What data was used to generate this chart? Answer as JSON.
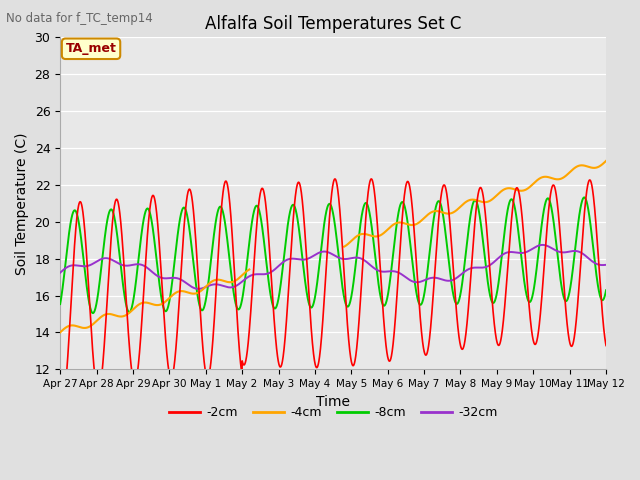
{
  "title": "Alfalfa Soil Temperatures Set C",
  "subtitle": "No data for f_TC_temp14",
  "xlabel": "Time",
  "ylabel": "Soil Temperature (C)",
  "ylim": [
    12,
    30
  ],
  "xlim": [
    0,
    15
  ],
  "xtick_labels": [
    "Apr 27",
    "Apr 28",
    "Apr 29",
    "Apr 30",
    "May 1",
    "May 2",
    "May 3",
    "May 4",
    "May 5",
    "May 6",
    "May 7",
    "May 8",
    "May 9",
    "May 10",
    "May 11",
    "May 12"
  ],
  "xtick_positions": [
    0,
    1,
    2,
    3,
    4,
    5,
    6,
    7,
    8,
    9,
    10,
    11,
    12,
    13,
    14,
    15
  ],
  "ytick_positions": [
    12,
    14,
    16,
    18,
    20,
    22,
    24,
    26,
    28,
    30
  ],
  "colors": {
    "2cm": "#ff0000",
    "4cm": "#ffa500",
    "8cm": "#00cc00",
    "32cm": "#9932cc"
  },
  "ta_met_label": "TA_met",
  "ta_met_box_facecolor": "#ffffcc",
  "ta_met_box_edgecolor": "#cc8800",
  "ta_met_text_color": "#990000",
  "bg_color": "#e0e0e0",
  "plot_bg_color": "#e8e8e8",
  "grid_color": "#ffffff",
  "legend_labels": [
    "-2cm",
    "-4cm",
    "-8cm",
    "-32cm"
  ]
}
